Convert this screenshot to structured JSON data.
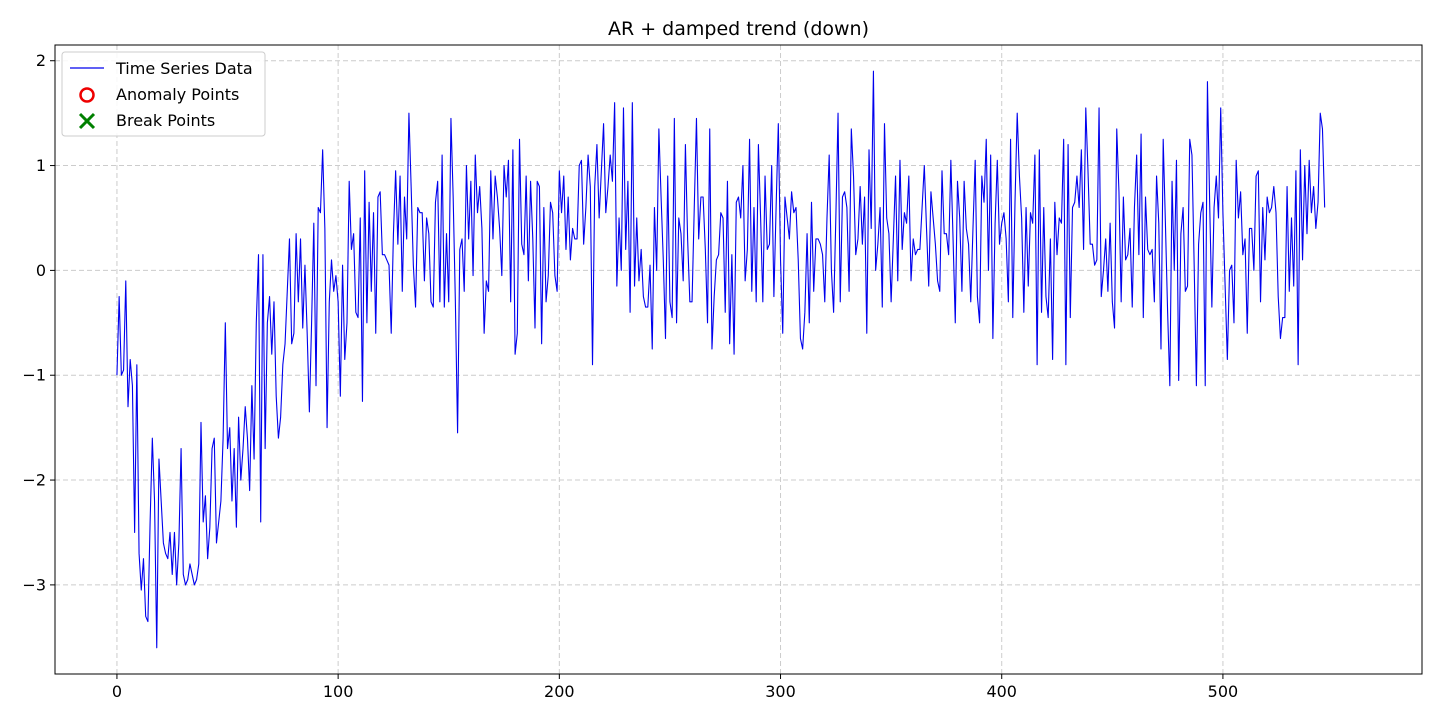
{
  "chart_data": {
    "type": "line",
    "title": "AR + damped trend (down)",
    "xlabel": "",
    "ylabel": "",
    "xlim": [
      -28,
      590
    ],
    "ylim": [
      -3.85,
      2.15
    ],
    "xticks": [
      0,
      100,
      200,
      300,
      400,
      500
    ],
    "yticks": [
      2,
      1,
      0,
      -1,
      -2,
      -3
    ],
    "ytick_labels": [
      "2",
      "1",
      "0",
      "−1",
      "−2",
      "−3"
    ],
    "grid": true,
    "legend_position": "upper-left",
    "legend": [
      "Time Series Data",
      "Anomaly Points",
      "Break Points"
    ],
    "colors": {
      "line": "#0000ee",
      "anomaly": "#ee0000",
      "break": "#008000",
      "grid": "#cccccc"
    },
    "series": [
      {
        "name": "Time Series Data",
        "x_start": 0,
        "values": [
          -1.0,
          -0.25,
          -1.0,
          -0.95,
          -0.1,
          -1.3,
          -0.85,
          -1.1,
          -2.5,
          -0.9,
          -2.7,
          -3.05,
          -2.75,
          -3.3,
          -3.35,
          -2.4,
          -1.6,
          -2.2,
          -3.6,
          -1.8,
          -2.2,
          -2.6,
          -2.7,
          -2.75,
          -2.5,
          -2.9,
          -2.5,
          -3.0,
          -2.6,
          -1.7,
          -2.9,
          -3.0,
          -2.95,
          -2.8,
          -2.9,
          -3.0,
          -2.95,
          -2.8,
          -1.45,
          -2.4,
          -2.15,
          -2.75,
          -2.45,
          -1.7,
          -1.6,
          -2.6,
          -2.4,
          -2.2,
          -1.6,
          -0.5,
          -1.7,
          -1.5,
          -2.2,
          -1.7,
          -2.45,
          -1.4,
          -2.0,
          -1.7,
          -1.3,
          -1.6,
          -2.1,
          -1.1,
          -1.8,
          -0.5,
          0.15,
          -2.4,
          0.15,
          -1.7,
          -0.5,
          -0.25,
          -0.8,
          -0.3,
          -1.2,
          -1.6,
          -1.4,
          -0.9,
          -0.7,
          -0.2,
          0.3,
          -0.7,
          -0.6,
          0.35,
          -0.3,
          0.3,
          -0.55,
          0.05,
          -0.6,
          -1.35,
          -0.5,
          0.45,
          -1.1,
          0.6,
          0.55,
          1.15,
          0.4,
          -1.5,
          -0.3,
          0.1,
          -0.2,
          -0.05,
          -0.3,
          -1.2,
          0.05,
          -0.85,
          -0.5,
          0.85,
          0.2,
          0.35,
          -0.4,
          -0.45,
          0.5,
          -1.25,
          0.95,
          -0.5,
          0.65,
          -0.2,
          0.55,
          -0.6,
          0.7,
          0.75,
          0.15,
          0.15,
          0.1,
          0.05,
          -0.6,
          0.35,
          0.95,
          0.25,
          0.9,
          -0.2,
          0.7,
          0.3,
          1.5,
          0.8,
          0.05,
          -0.35,
          0.6,
          0.55,
          0.55,
          -0.1,
          0.5,
          0.35,
          -0.3,
          -0.35,
          0.65,
          0.85,
          -0.3,
          1.1,
          -0.35,
          0.35,
          -0.3,
          1.45,
          0.7,
          -0.3,
          -1.55,
          0.2,
          0.3,
          -0.2,
          1.0,
          0.3,
          0.85,
          -0.05,
          1.1,
          0.55,
          0.8,
          0.4,
          -0.6,
          -0.1,
          -0.2,
          0.95,
          0.3,
          0.9,
          0.7,
          0.4,
          -0.05,
          1.0,
          0.7,
          1.05,
          -0.3,
          1.15,
          -0.8,
          -0.6,
          1.25,
          0.25,
          0.15,
          0.9,
          -0.1,
          0.85,
          0.3,
          -0.55,
          0.85,
          0.8,
          -0.7,
          0.6,
          -0.3,
          -0.05,
          0.65,
          0.55,
          -0.05,
          -0.2,
          0.95,
          0.55,
          0.9,
          0.2,
          0.7,
          0.1,
          0.4,
          0.3,
          0.3,
          1.0,
          1.05,
          0.25,
          0.6,
          1.1,
          0.8,
          -0.9,
          0.8,
          1.2,
          0.5,
          0.95,
          1.4,
          0.55,
          0.8,
          1.1,
          0.85,
          1.6,
          -0.15,
          0.5,
          0.0,
          1.55,
          0.2,
          0.85,
          -0.4,
          1.6,
          -0.15,
          0.5,
          -0.1,
          0.2,
          -0.25,
          -0.35,
          -0.35,
          0.05,
          -0.75,
          0.6,
          0.0,
          1.35,
          0.7,
          0.1,
          -0.65,
          0.9,
          -0.3,
          -0.45,
          1.45,
          -0.5,
          0.5,
          0.35,
          -0.1,
          1.2,
          0.3,
          -0.3,
          -0.3,
          0.6,
          1.45,
          0.3,
          0.7,
          0.7,
          0.2,
          -0.5,
          1.35,
          -0.75,
          -0.25,
          0.1,
          0.15,
          0.55,
          0.5,
          -0.4,
          0.85,
          -0.7,
          0.15,
          -0.8,
          0.65,
          0.7,
          0.5,
          1.0,
          -0.1,
          0.2,
          1.25,
          -0.2,
          0.6,
          -0.3,
          1.2,
          0.5,
          -0.3,
          0.9,
          0.2,
          0.25,
          1.0,
          -0.25,
          0.6,
          1.4,
          0.1,
          -0.6,
          0.7,
          0.5,
          0.3,
          0.75,
          0.55,
          0.6,
          0.1,
          -0.65,
          -0.75,
          -0.4,
          0.35,
          -0.5,
          0.65,
          -0.2,
          0.3,
          0.3,
          0.25,
          0.15,
          -0.3,
          0.5,
          1.1,
          0.0,
          -0.4,
          0.5,
          1.5,
          -0.3,
          0.7,
          0.75,
          0.6,
          -0.2,
          1.35,
          0.9,
          0.15,
          0.3,
          0.8,
          0.25,
          0.7,
          -0.6,
          1.15,
          0.4,
          1.9,
          0.0,
          0.25,
          0.6,
          -0.35,
          1.4,
          0.5,
          0.35,
          -0.3,
          0.3,
          0.9,
          -0.1,
          1.05,
          0.2,
          0.55,
          0.45,
          0.9,
          -0.1,
          0.3,
          0.15,
          0.2,
          0.2,
          0.6,
          1.0,
          0.4,
          -0.15,
          0.75,
          0.5,
          0.25,
          -0.1,
          -0.2,
          0.95,
          0.35,
          0.35,
          0.15,
          1.05,
          0.3,
          -0.5,
          0.85,
          0.5,
          -0.2,
          0.85,
          0.4,
          0.25,
          -0.3,
          0.4,
          1.05,
          -0.25,
          -0.5,
          0.9,
          0.65,
          1.25,
          0.0,
          1.1,
          -0.65,
          0.45,
          1.05,
          0.25,
          0.45,
          0.55,
          0.3,
          -0.3,
          1.25,
          -0.45,
          0.65,
          1.5,
          0.9,
          0.5,
          -0.4,
          0.6,
          -0.15,
          0.55,
          0.45,
          1.1,
          -0.9,
          1.15,
          -0.4,
          0.6,
          -0.25,
          -0.45,
          0.3,
          -0.85,
          0.65,
          0.15,
          0.5,
          0.45,
          1.25,
          -0.9,
          1.2,
          -0.45,
          0.6,
          0.65,
          0.9,
          0.6,
          1.15,
          0.2,
          1.55,
          0.95,
          0.25,
          0.25,
          0.05,
          0.1,
          1.55,
          -0.25,
          0.0,
          0.3,
          -0.2,
          0.45,
          -0.3,
          -0.55,
          1.35,
          0.75,
          -0.3,
          0.7,
          0.1,
          0.15,
          0.4,
          -0.35,
          0.6,
          1.1,
          0.15,
          1.3,
          -0.45,
          0.7,
          0.2,
          0.15,
          0.2,
          -0.3,
          0.9,
          0.45,
          -0.75,
          1.25,
          0.45,
          -0.4,
          -1.1,
          0.85,
          0.0,
          1.05,
          -1.05,
          0.35,
          0.6,
          -0.2,
          -0.15,
          1.25,
          1.1,
          0.05,
          -1.1,
          0.25,
          0.55,
          0.65,
          -1.1,
          1.8,
          0.65,
          -0.35,
          0.6,
          0.9,
          0.5,
          1.55,
          0.55,
          -0.15,
          -0.85,
          0.0,
          0.05,
          -0.5,
          1.05,
          0.5,
          0.75,
          0.15,
          0.3,
          -0.6,
          0.4,
          0.4,
          0.0,
          0.9,
          0.95,
          -0.3,
          0.6,
          0.1,
          0.7,
          0.55,
          0.6,
          0.8,
          0.55,
          -0.25,
          -0.65,
          -0.45,
          -0.45,
          0.8,
          -0.2,
          0.5,
          -0.15,
          0.95,
          -0.9,
          1.15,
          0.1,
          1.0,
          0.35,
          1.05,
          0.55,
          0.8,
          0.4,
          0.65,
          1.5,
          1.35,
          0.6
        ]
      }
    ],
    "anomaly_points": [],
    "break_points": []
  }
}
